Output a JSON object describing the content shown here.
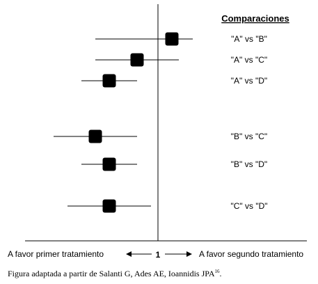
{
  "chart_data": {
    "type": "forest",
    "heading": "Comparaciones",
    "null_value_label": "1",
    "left_label": "A favor primer tratamiento",
    "right_label": "A favor segundo tratamiento",
    "rows": [
      {
        "label": "\"A\" vs \"B\"",
        "estimate": 0.2,
        "lower": -0.9,
        "upper": 0.5
      },
      {
        "label": "\"A\" vs \"C\"",
        "estimate": -0.3,
        "lower": -0.9,
        "upper": 0.3
      },
      {
        "label": "\"A\" vs \"D\"",
        "estimate": -0.7,
        "lower": -1.1,
        "upper": -0.3
      },
      {
        "label": "\"B\" vs \"C\"",
        "estimate": -0.9,
        "lower": -1.5,
        "upper": -0.3
      },
      {
        "label": "\"B\" vs \"D\"",
        "estimate": -0.7,
        "lower": -1.1,
        "upper": -0.3
      },
      {
        "label": "\"C\" vs \"D\"",
        "estimate": -0.7,
        "lower": -1.3,
        "upper": -0.1
      }
    ]
  },
  "caption": {
    "text": "Figura adaptada a partir de Salanti G, Ades AE, Ioannidis JPA",
    "ref": "16",
    "end": "."
  }
}
